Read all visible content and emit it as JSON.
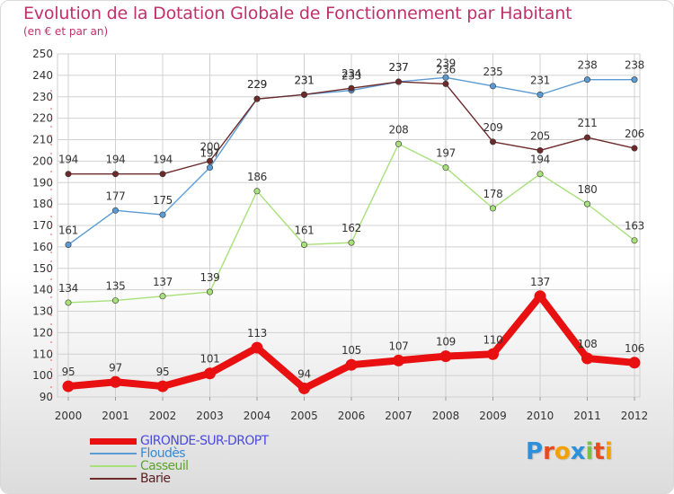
{
  "chart_data": {
    "type": "line",
    "title": "Evolution de la Dotation Globale de Fonctionnement par Habitant",
    "subtitle": "(en € et par an)",
    "xlabel": "",
    "ylabel": "",
    "ylim": [
      90,
      250
    ],
    "yticks": [
      90,
      100,
      110,
      120,
      130,
      140,
      150,
      160,
      170,
      180,
      190,
      200,
      210,
      220,
      230,
      240,
      250
    ],
    "grid": true,
    "legend_position": "bottom-left",
    "categories": [
      "2000",
      "2001",
      "2002",
      "2003",
      "2004",
      "2005",
      "2006",
      "2007",
      "2008",
      "2009",
      "2010",
      "2011",
      "2012"
    ],
    "series": [
      {
        "name": "GIRONDE-SUR-DROPT",
        "color": "#e81010",
        "values": [
          95,
          97,
          95,
          101,
          113,
          94,
          105,
          107,
          109,
          110,
          137,
          108,
          106
        ]
      },
      {
        "name": "Floudès",
        "color": "#5a9bd4",
        "values": [
          161,
          177,
          175,
          197,
          229,
          231,
          233,
          237,
          239,
          235,
          231,
          238,
          238
        ]
      },
      {
        "name": "Casseuil",
        "color": "#a8e07a",
        "values": [
          134,
          135,
          137,
          139,
          186,
          161,
          162,
          208,
          197,
          178,
          194,
          180,
          163
        ]
      },
      {
        "name": "Barie",
        "color": "#6e2a2a",
        "values": [
          194,
          194,
          194,
          200,
          229,
          231,
          234,
          237,
          236,
          209,
          205,
          211,
          206
        ]
      }
    ]
  },
  "logo": {
    "text": "Proxiti",
    "letter_colors": [
      "#2f8fd8",
      "#e84c1e",
      "#f4a100",
      "#2f8fd8",
      "#7cc242",
      "#e84c1e",
      "#f4a100"
    ]
  }
}
